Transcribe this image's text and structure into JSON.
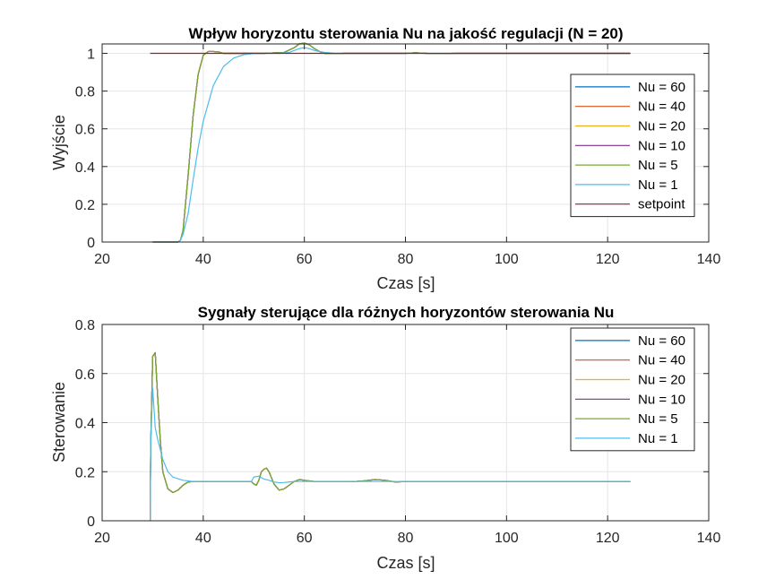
{
  "chart_data": [
    {
      "type": "line",
      "title": "Wpływ horyzontu sterowania Nu na jakość regulacji (N = 20)",
      "xlabel": "Czas [s]",
      "ylabel": "Wyjście",
      "xlim": [
        20,
        140
      ],
      "ylim": [
        0,
        1.05
      ],
      "xticks": [
        20,
        40,
        60,
        80,
        100,
        120,
        140
      ],
      "yticks": [
        0,
        0.2,
        0.4,
        0.6,
        0.8,
        1
      ],
      "xtick_labels": [
        "20",
        "40",
        "60",
        "80",
        "100",
        "120",
        "140"
      ],
      "ytick_labels": [
        "0",
        "0.2",
        "0.4",
        "0.6",
        "0.8",
        "1"
      ],
      "grid": true,
      "legend_position": "right",
      "series": [
        {
          "name": "Nu = 60",
          "color": "#0072BD",
          "x": [
            30,
            35,
            35.5,
            36,
            37,
            38,
            39,
            40,
            41,
            42,
            43,
            44,
            46,
            48,
            52,
            56,
            58,
            59,
            60,
            61,
            62,
            63,
            64,
            66,
            68,
            70,
            75,
            80,
            82,
            84,
            86,
            90,
            100,
            110,
            124.5
          ],
          "y": [
            0,
            0,
            0.01,
            0.06,
            0.35,
            0.67,
            0.89,
            0.99,
            1.01,
            1.01,
            1.008,
            1.0,
            1.0,
            1.0,
            1.0,
            1.005,
            1.03,
            1.05,
            1.055,
            1.045,
            1.025,
            1.01,
            1.0,
            0.998,
            1.0,
            1.0,
            1.0,
            1.0,
            1.003,
            1.0,
            0.998,
            1.0,
            1.0,
            1.0,
            1.0
          ]
        },
        {
          "name": "Nu = 40",
          "color": "#D95319",
          "x": [
            30,
            35,
            35.5,
            36,
            37,
            38,
            39,
            40,
            41,
            42,
            43,
            44,
            46,
            48,
            52,
            56,
            58,
            59,
            60,
            61,
            62,
            63,
            64,
            66,
            68,
            70,
            75,
            80,
            82,
            84,
            86,
            90,
            100,
            110,
            124.5
          ],
          "y": [
            0,
            0,
            0.01,
            0.06,
            0.35,
            0.67,
            0.89,
            0.99,
            1.01,
            1.01,
            1.008,
            1.0,
            1.0,
            1.0,
            1.0,
            1.005,
            1.03,
            1.05,
            1.055,
            1.045,
            1.025,
            1.01,
            1.0,
            0.998,
            1.0,
            1.0,
            1.0,
            1.0,
            1.003,
            1.0,
            0.998,
            1.0,
            1.0,
            1.0,
            1.0
          ]
        },
        {
          "name": "Nu = 20",
          "color": "#EDB120",
          "x": [
            30,
            35,
            35.5,
            36,
            37,
            38,
            39,
            40,
            41,
            42,
            43,
            44,
            46,
            48,
            52,
            56,
            58,
            59,
            60,
            61,
            62,
            63,
            64,
            66,
            68,
            70,
            75,
            80,
            82,
            84,
            86,
            90,
            100,
            110,
            124.5
          ],
          "y": [
            0,
            0,
            0.01,
            0.06,
            0.35,
            0.67,
            0.89,
            0.99,
            1.01,
            1.01,
            1.008,
            1.0,
            1.0,
            1.0,
            1.0,
            1.005,
            1.03,
            1.05,
            1.055,
            1.045,
            1.025,
            1.01,
            1.0,
            0.998,
            1.0,
            1.0,
            1.0,
            1.0,
            1.003,
            1.0,
            0.998,
            1.0,
            1.0,
            1.0,
            1.0
          ]
        },
        {
          "name": "Nu = 10",
          "color": "#7E2F8E",
          "x": [
            30,
            35,
            35.5,
            36,
            37,
            38,
            39,
            40,
            41,
            42,
            43,
            44,
            46,
            48,
            52,
            56,
            58,
            59,
            60,
            61,
            62,
            63,
            64,
            66,
            68,
            70,
            75,
            80,
            82,
            84,
            86,
            90,
            100,
            110,
            124.5
          ],
          "y": [
            0,
            0,
            0.01,
            0.06,
            0.35,
            0.67,
            0.89,
            0.99,
            1.01,
            1.01,
            1.008,
            1.0,
            1.0,
            1.0,
            1.0,
            1.005,
            1.03,
            1.05,
            1.055,
            1.045,
            1.025,
            1.01,
            1.0,
            0.998,
            1.0,
            1.0,
            1.0,
            1.0,
            1.003,
            1.0,
            0.998,
            1.0,
            1.0,
            1.0,
            1.0
          ]
        },
        {
          "name": "Nu = 5",
          "color": "#77AC30",
          "x": [
            30,
            35,
            35.5,
            36,
            37,
            38,
            39,
            40,
            41,
            42,
            43,
            44,
            46,
            48,
            52,
            56,
            58,
            59,
            60,
            61,
            62,
            63,
            64,
            66,
            68,
            70,
            75,
            80,
            82,
            84,
            86,
            90,
            100,
            110,
            124.5
          ],
          "y": [
            0,
            0,
            0.01,
            0.06,
            0.35,
            0.67,
            0.89,
            0.99,
            1.01,
            1.01,
            1.008,
            1.0,
            1.0,
            1.0,
            1.0,
            1.005,
            1.03,
            1.05,
            1.055,
            1.045,
            1.025,
            1.01,
            1.0,
            0.998,
            1.0,
            1.0,
            1.0,
            1.0,
            1.003,
            1.0,
            0.998,
            1.0,
            1.0,
            1.0,
            1.0
          ]
        },
        {
          "name": "Nu = 1",
          "color": "#4DBEEE",
          "x": [
            30,
            35,
            35.5,
            36,
            37,
            38,
            39,
            40,
            42,
            44,
            46,
            48,
            50,
            52,
            55,
            57,
            58,
            59,
            60,
            61,
            62,
            64,
            66,
            70,
            80,
            100,
            124.5
          ],
          "y": [
            0,
            0,
            0.01,
            0.04,
            0.15,
            0.33,
            0.5,
            0.64,
            0.83,
            0.93,
            0.975,
            0.993,
            0.999,
            1.0,
            1.0,
            1.005,
            1.015,
            1.025,
            1.03,
            1.025,
            1.015,
            1.005,
            1.0,
            1.0,
            1.0,
            1.0,
            1.0
          ]
        },
        {
          "name": "setpoint",
          "color": "#A2142F",
          "x": [
            29.5,
            124.5
          ],
          "y": [
            1,
            1
          ]
        }
      ]
    },
    {
      "type": "line",
      "title": "Sygnały sterujące dla różnych horyzontów sterowania Nu",
      "xlabel": "Czas [s]",
      "ylabel": "Sterowanie",
      "xlim": [
        20,
        140
      ],
      "ylim": [
        0,
        0.8
      ],
      "xticks": [
        20,
        40,
        60,
        80,
        100,
        120,
        140
      ],
      "yticks": [
        0,
        0.2,
        0.4,
        0.6,
        0.8
      ],
      "xtick_labels": [
        "20",
        "40",
        "60",
        "80",
        "100",
        "120",
        "140"
      ],
      "ytick_labels": [
        "0",
        "0.2",
        "0.4",
        "0.6",
        "0.8"
      ],
      "grid": true,
      "legend_position": "top-right",
      "series": [
        {
          "name": "Nu = 60",
          "color": "#0072BD",
          "x": [
            29.5,
            29.6,
            30,
            30.5,
            31,
            31.5,
            32,
            33,
            34,
            35,
            36,
            37,
            38,
            40,
            42,
            44,
            46,
            48,
            49.5,
            50,
            50.5,
            51,
            51.5,
            52,
            52.5,
            53,
            54,
            55,
            56,
            57,
            58,
            59,
            60,
            62,
            64,
            66,
            70,
            72,
            74,
            76,
            78,
            80,
            85,
            90,
            100,
            110,
            124.5
          ],
          "y": [
            0,
            0.3,
            0.67,
            0.685,
            0.5,
            0.33,
            0.2,
            0.13,
            0.115,
            0.125,
            0.145,
            0.158,
            0.16,
            0.16,
            0.16,
            0.16,
            0.16,
            0.16,
            0.16,
            0.15,
            0.145,
            0.165,
            0.2,
            0.21,
            0.215,
            0.2,
            0.15,
            0.125,
            0.13,
            0.145,
            0.16,
            0.168,
            0.165,
            0.16,
            0.16,
            0.16,
            0.16,
            0.163,
            0.168,
            0.165,
            0.158,
            0.16,
            0.16,
            0.16,
            0.16,
            0.16,
            0.16
          ]
        },
        {
          "name": "Nu = 40",
          "color": "#D95319",
          "x": [
            29.5,
            29.6,
            30,
            30.5,
            31,
            31.5,
            32,
            33,
            34,
            35,
            36,
            37,
            38,
            40,
            42,
            44,
            46,
            48,
            49.5,
            50,
            50.5,
            51,
            51.5,
            52,
            52.5,
            53,
            54,
            55,
            56,
            57,
            58,
            59,
            60,
            62,
            64,
            66,
            70,
            72,
            74,
            76,
            78,
            80,
            85,
            90,
            100,
            110,
            124.5
          ],
          "y": [
            0,
            0.3,
            0.67,
            0.685,
            0.5,
            0.33,
            0.2,
            0.13,
            0.115,
            0.125,
            0.145,
            0.158,
            0.16,
            0.16,
            0.16,
            0.16,
            0.16,
            0.16,
            0.16,
            0.15,
            0.145,
            0.165,
            0.2,
            0.21,
            0.215,
            0.2,
            0.15,
            0.125,
            0.13,
            0.145,
            0.16,
            0.168,
            0.165,
            0.16,
            0.16,
            0.16,
            0.16,
            0.163,
            0.168,
            0.165,
            0.158,
            0.16,
            0.16,
            0.16,
            0.16,
            0.16,
            0.16
          ]
        },
        {
          "name": "Nu = 20",
          "color": "#EDB120",
          "x": [
            29.5,
            29.6,
            30,
            30.5,
            31,
            31.5,
            32,
            33,
            34,
            35,
            36,
            37,
            38,
            40,
            42,
            44,
            46,
            48,
            49.5,
            50,
            50.5,
            51,
            51.5,
            52,
            52.5,
            53,
            54,
            55,
            56,
            57,
            58,
            59,
            60,
            62,
            64,
            66,
            70,
            72,
            74,
            76,
            78,
            80,
            85,
            90,
            100,
            110,
            124.5
          ],
          "y": [
            0,
            0.3,
            0.67,
            0.685,
            0.5,
            0.33,
            0.2,
            0.13,
            0.115,
            0.125,
            0.145,
            0.158,
            0.16,
            0.16,
            0.16,
            0.16,
            0.16,
            0.16,
            0.16,
            0.15,
            0.145,
            0.165,
            0.2,
            0.21,
            0.215,
            0.2,
            0.15,
            0.125,
            0.13,
            0.145,
            0.16,
            0.168,
            0.165,
            0.16,
            0.16,
            0.16,
            0.16,
            0.163,
            0.168,
            0.165,
            0.158,
            0.16,
            0.16,
            0.16,
            0.16,
            0.16,
            0.16
          ]
        },
        {
          "name": "Nu = 10",
          "color": "#7E2F8E",
          "x": [
            29.5,
            29.6,
            30,
            30.5,
            31,
            31.5,
            32,
            33,
            34,
            35,
            36,
            37,
            38,
            40,
            42,
            44,
            46,
            48,
            49.5,
            50,
            50.5,
            51,
            51.5,
            52,
            52.5,
            53,
            54,
            55,
            56,
            57,
            58,
            59,
            60,
            62,
            64,
            66,
            70,
            72,
            74,
            76,
            78,
            80,
            85,
            90,
            100,
            110,
            124.5
          ],
          "y": [
            0,
            0.3,
            0.67,
            0.685,
            0.5,
            0.33,
            0.2,
            0.13,
            0.115,
            0.125,
            0.145,
            0.158,
            0.16,
            0.16,
            0.16,
            0.16,
            0.16,
            0.16,
            0.16,
            0.15,
            0.145,
            0.165,
            0.2,
            0.21,
            0.215,
            0.2,
            0.15,
            0.125,
            0.13,
            0.145,
            0.16,
            0.168,
            0.165,
            0.16,
            0.16,
            0.16,
            0.16,
            0.163,
            0.168,
            0.165,
            0.158,
            0.16,
            0.16,
            0.16,
            0.16,
            0.16,
            0.16
          ]
        },
        {
          "name": "Nu = 5",
          "color": "#77AC30",
          "x": [
            29.5,
            29.6,
            30,
            30.5,
            31,
            31.5,
            32,
            33,
            34,
            35,
            36,
            37,
            38,
            40,
            42,
            44,
            46,
            48,
            49.5,
            50,
            50.5,
            51,
            51.5,
            52,
            52.5,
            53,
            54,
            55,
            56,
            57,
            58,
            59,
            60,
            62,
            64,
            66,
            70,
            72,
            74,
            76,
            78,
            80,
            85,
            90,
            100,
            110,
            124.5
          ],
          "y": [
            0,
            0.3,
            0.67,
            0.685,
            0.5,
            0.33,
            0.2,
            0.13,
            0.115,
            0.125,
            0.145,
            0.158,
            0.16,
            0.16,
            0.16,
            0.16,
            0.16,
            0.16,
            0.16,
            0.15,
            0.145,
            0.165,
            0.2,
            0.21,
            0.215,
            0.2,
            0.15,
            0.125,
            0.13,
            0.145,
            0.16,
            0.168,
            0.165,
            0.16,
            0.16,
            0.16,
            0.16,
            0.163,
            0.168,
            0.165,
            0.158,
            0.16,
            0.16,
            0.16,
            0.16,
            0.16,
            0.16
          ]
        },
        {
          "name": "Nu = 1",
          "color": "#4DBEEE",
          "x": [
            29.5,
            29.6,
            30,
            30.5,
            31,
            32,
            33,
            34,
            36,
            38,
            40,
            45,
            49.5,
            50,
            51,
            52,
            53,
            54,
            55,
            56,
            57,
            58,
            60,
            65,
            70,
            80,
            100,
            124.5
          ],
          "y": [
            0,
            0.3,
            0.54,
            0.38,
            0.33,
            0.25,
            0.2,
            0.178,
            0.165,
            0.16,
            0.16,
            0.16,
            0.16,
            0.178,
            0.182,
            0.17,
            0.165,
            0.158,
            0.155,
            0.156,
            0.158,
            0.16,
            0.16,
            0.16,
            0.16,
            0.16,
            0.16,
            0.16
          ]
        }
      ]
    }
  ]
}
